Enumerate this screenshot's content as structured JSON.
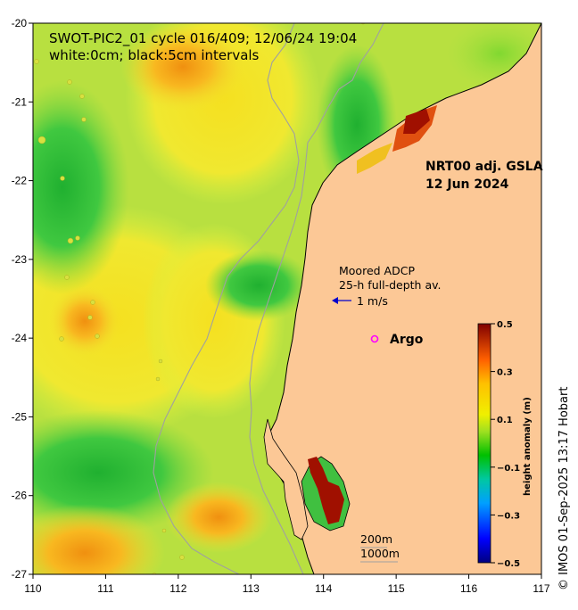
{
  "title_line1": "SWOT-PIC2_01 cycle 016/409; 12/06/24 19:04",
  "title_line2": "white:0cm; black:5cm intervals",
  "product_line1": "NRT00 adj. GSLA",
  "product_line2": "12 Jun 2024",
  "adcp_line1": "Moored ADCP",
  "adcp_line2": "25-h full-depth av.",
  "adcp_scale": "1 m/s",
  "argo_label": "Argo",
  "isobath_200": "200m",
  "isobath_1000": "1000m",
  "colorbar_title": "height anomaly (m)",
  "credit": "© IMOS 01-Sep-2025 13:17 Hobart",
  "colors": {
    "land": "#fcc896",
    "arrow": "#0000cc",
    "argo": "#ff00ff",
    "isobath": "#a0a0a0"
  },
  "chart_data": {
    "type": "heatmap",
    "x_ticks": [
      "110",
      "111",
      "112",
      "113",
      "114",
      "115",
      "116",
      "117"
    ],
    "y_ticks": [
      "-20",
      "-21",
      "-22",
      "-23",
      "-24",
      "-25",
      "-26",
      "-27"
    ],
    "xlim": [
      110,
      117
    ],
    "ylim": [
      -27,
      -20
    ],
    "colorbar": {
      "min": -0.5,
      "max": 0.5,
      "ticks": [
        "0.5",
        "0.3",
        "0.1",
        "−0.1",
        "−0.3",
        "−0.5"
      ]
    }
  }
}
